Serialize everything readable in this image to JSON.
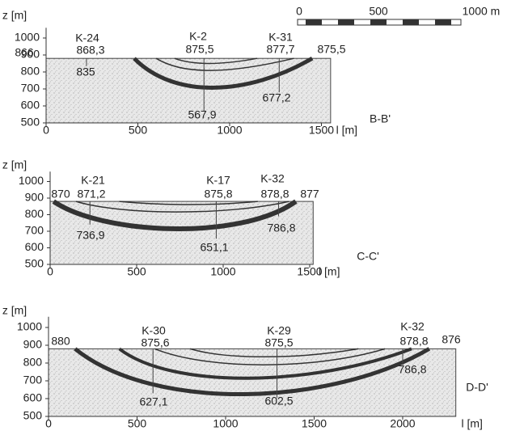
{
  "scale_bar": {
    "ticks": [
      "0",
      "500",
      "1000 m"
    ]
  },
  "panels": [
    {
      "section": "B-B'",
      "y_label": "z [m]",
      "x_label": "l [m]",
      "yticks": [
        1000,
        900,
        800,
        700,
        600,
        500
      ],
      "xticks": [
        0,
        500,
        1000,
        1500
      ],
      "annotations": [
        "866",
        "K-24",
        "868,3",
        "835",
        "K-2",
        "875,5",
        "567,9",
        "K-31",
        "877,7",
        "677,2",
        "875,5"
      ]
    },
    {
      "section": "C-C'",
      "y_label": "z [m]",
      "x_label": "l [m]",
      "yticks": [
        1000,
        900,
        800,
        700,
        600,
        500
      ],
      "xticks": [
        0,
        500,
        1000,
        1500
      ],
      "annotations": [
        "870",
        "K-21",
        "871,2",
        "736,9",
        "K-17",
        "875,8",
        "651,1",
        "K-32",
        "878,8",
        "877",
        "786,8"
      ]
    },
    {
      "section": "D-D'",
      "y_label": "z [m]",
      "x_label": "l [m]",
      "yticks": [
        1000,
        900,
        800,
        700,
        600,
        500
      ],
      "xticks": [
        0,
        500,
        1000,
        1500,
        2000
      ],
      "annotations": [
        "880",
        "K-30",
        "875,6",
        "627,1",
        "K-29",
        "875,5",
        "602,5",
        "K-32",
        "878,8",
        "876",
        "786,8"
      ]
    }
  ]
}
